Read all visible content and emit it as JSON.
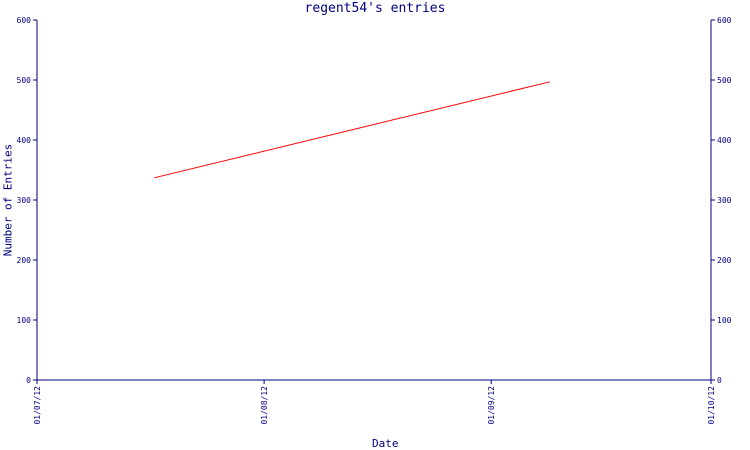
{
  "chart_data": {
    "type": "line",
    "title": "regent54's entries",
    "xlabel": "Date",
    "ylabel": "Number of Entries",
    "ylim": [
      0,
      600
    ],
    "y_ticks": [
      "0",
      "100",
      "200",
      "300",
      "400",
      "500",
      "600"
    ],
    "x_tick_labels": [
      "01/07/12",
      "01/08/12",
      "01/09/12",
      "01/10/12"
    ],
    "x_ticks": [
      "2012-07-01",
      "2012-08-01",
      "2012-09-01",
      "2012-10-01"
    ],
    "xlim": [
      "2012-07-01",
      "2012-10-01"
    ],
    "series": [
      {
        "x": [
          "2012-07-17",
          "2012-09-09"
        ],
        "y": [
          337,
          497
        ]
      }
    ],
    "grid": false,
    "right_axis": true,
    "colors": {
      "axis": "#000080",
      "line": "#ff0000",
      "text": "#000080"
    }
  }
}
